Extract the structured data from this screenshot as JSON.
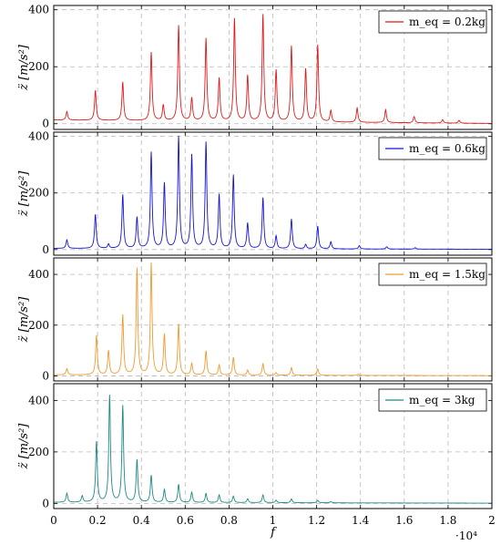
{
  "chart_data": {
    "type": "line",
    "xlabel": "f",
    "x_exponent_label": "·10⁴",
    "x_range": [
      0,
      20000
    ],
    "x_ticks": [
      0,
      2000,
      4000,
      6000,
      8000,
      10000,
      12000,
      14000,
      16000,
      18000,
      20000
    ],
    "x_tick_labels": [
      "0",
      "0.2",
      "0.4",
      "0.6",
      "0.8",
      "1",
      "1.2",
      "1.4",
      "1.6",
      "1.8",
      "2"
    ],
    "y_ticks": [
      0,
      200,
      400
    ],
    "y_tick_labels": [
      "0",
      "200",
      "400"
    ],
    "grid": true,
    "legend_position": "top-right",
    "panels": [
      {
        "ylabel": "z̈ [m/s²]",
        "legend_label": "m_eq = 0.2kg",
        "color": "#e0191b",
        "y_range": [
          -20,
          415
        ],
        "baseline": 12,
        "peaks": [
          [
            600,
            30
          ],
          [
            1900,
            105
          ],
          [
            3150,
            135
          ],
          [
            4450,
            240
          ],
          [
            5000,
            55
          ],
          [
            5700,
            335
          ],
          [
            6300,
            80
          ],
          [
            6950,
            290
          ],
          [
            7550,
            150
          ],
          [
            8250,
            360
          ],
          [
            8850,
            160
          ],
          [
            9550,
            375
          ],
          [
            10150,
            180
          ],
          [
            10850,
            265
          ],
          [
            11500,
            185
          ],
          [
            12050,
            270
          ],
          [
            12650,
            40
          ],
          [
            13850,
            50
          ],
          [
            15150,
            45
          ],
          [
            16450,
            22
          ],
          [
            17750,
            12
          ],
          [
            18500,
            10
          ]
        ]
      },
      {
        "ylabel": "z̈ [m/s²]",
        "legend_label": "m_eq = 0.6kg",
        "color": "#1414d4",
        "y_range": [
          -20,
          415
        ],
        "baseline": 3,
        "peaks": [
          [
            600,
            30
          ],
          [
            1900,
            120
          ],
          [
            2500,
            15
          ],
          [
            3150,
            190
          ],
          [
            3800,
            110
          ],
          [
            4450,
            340
          ],
          [
            5050,
            230
          ],
          [
            5700,
            395
          ],
          [
            6300,
            330
          ],
          [
            6950,
            375
          ],
          [
            7550,
            190
          ],
          [
            8200,
            260
          ],
          [
            8850,
            90
          ],
          [
            9550,
            180
          ],
          [
            10150,
            45
          ],
          [
            10850,
            105
          ],
          [
            11500,
            15
          ],
          [
            12050,
            80
          ],
          [
            12650,
            25
          ],
          [
            13950,
            12
          ],
          [
            15200,
            8
          ],
          [
            16500,
            5
          ]
        ]
      },
      {
        "ylabel": "z̈ [m/s²]",
        "legend_label": "m_eq = 1.5kg",
        "color": "#f29a2e",
        "y_range": [
          -20,
          465
        ],
        "baseline": 3,
        "peaks": [
          [
            600,
            25
          ],
          [
            1950,
            155
          ],
          [
            2500,
            95
          ],
          [
            3150,
            235
          ],
          [
            3800,
            420
          ],
          [
            4450,
            440
          ],
          [
            5050,
            160
          ],
          [
            5700,
            200
          ],
          [
            6300,
            45
          ],
          [
            6950,
            95
          ],
          [
            7550,
            40
          ],
          [
            8200,
            70
          ],
          [
            8850,
            20
          ],
          [
            9550,
            45
          ],
          [
            10150,
            10
          ],
          [
            10850,
            30
          ],
          [
            12050,
            25
          ],
          [
            13900,
            5
          ]
        ]
      },
      {
        "ylabel": "z̈ [m/s²]",
        "legend_label": "m_eq = 3kg",
        "color": "#1d8a83",
        "y_range": [
          -20,
          465
        ],
        "baseline": 3,
        "peaks": [
          [
            600,
            35
          ],
          [
            1300,
            25
          ],
          [
            1950,
            235
          ],
          [
            2550,
            415
          ],
          [
            3150,
            375
          ],
          [
            3800,
            165
          ],
          [
            4450,
            105
          ],
          [
            5050,
            50
          ],
          [
            5700,
            70
          ],
          [
            6300,
            40
          ],
          [
            6950,
            35
          ],
          [
            7550,
            30
          ],
          [
            8200,
            25
          ],
          [
            8850,
            15
          ],
          [
            9550,
            30
          ],
          [
            10150,
            10
          ],
          [
            10850,
            15
          ],
          [
            12050,
            10
          ],
          [
            12650,
            5
          ]
        ]
      }
    ]
  }
}
